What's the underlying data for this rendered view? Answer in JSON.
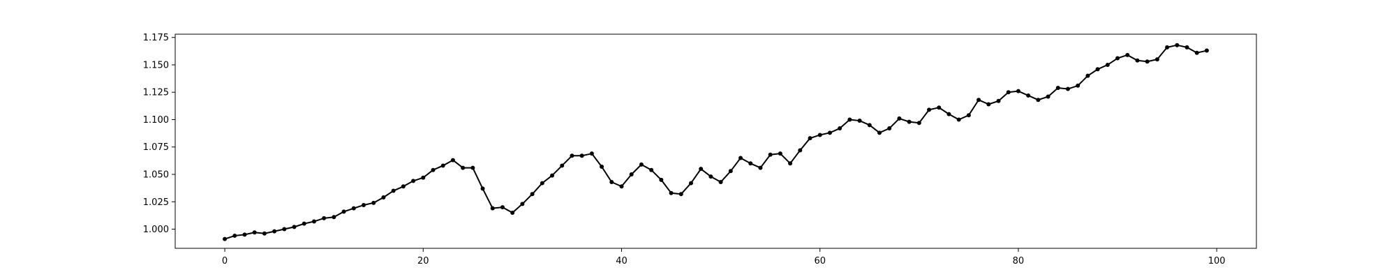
{
  "chart_data": {
    "type": "line",
    "title": "",
    "xlabel": "",
    "ylabel": "",
    "xlim": [
      -5,
      104
    ],
    "ylim": [
      0.9825,
      1.178
    ],
    "x_ticks": [
      0,
      20,
      40,
      60,
      80,
      100
    ],
    "x_tick_labels": [
      "0",
      "20",
      "40",
      "60",
      "80",
      "100"
    ],
    "y_ticks": [
      1.0,
      1.025,
      1.05,
      1.075,
      1.1,
      1.125,
      1.15,
      1.175
    ],
    "y_tick_labels": [
      "1.000",
      "1.025",
      "1.050",
      "1.075",
      "1.100",
      "1.125",
      "1.150",
      "1.175"
    ],
    "grid": false,
    "legend": "none",
    "series": [
      {
        "color": "#000000",
        "marker": "circle",
        "x_start": 0,
        "x_step": 1,
        "values": [
          0.991,
          0.994,
          0.995,
          0.997,
          0.996,
          0.998,
          1.0,
          1.002,
          1.005,
          1.007,
          1.01,
          1.011,
          1.016,
          1.019,
          1.022,
          1.024,
          1.029,
          1.035,
          1.039,
          1.044,
          1.047,
          1.054,
          1.058,
          1.063,
          1.056,
          1.056,
          1.037,
          1.019,
          1.02,
          1.015,
          1.023,
          1.032,
          1.042,
          1.049,
          1.058,
          1.067,
          1.067,
          1.069,
          1.057,
          1.043,
          1.039,
          1.05,
          1.059,
          1.054,
          1.045,
          1.033,
          1.032,
          1.042,
          1.055,
          1.048,
          1.043,
          1.053,
          1.065,
          1.06,
          1.056,
          1.068,
          1.069,
          1.06,
          1.072,
          1.083,
          1.086,
          1.088,
          1.092,
          1.1,
          1.099,
          1.095,
          1.088,
          1.092,
          1.101,
          1.098,
          1.097,
          1.109,
          1.111,
          1.105,
          1.1,
          1.104,
          1.118,
          1.114,
          1.117,
          1.125,
          1.126,
          1.122,
          1.118,
          1.121,
          1.129,
          1.128,
          1.131,
          1.14,
          1.146,
          1.15,
          1.156,
          1.159,
          1.154,
          1.153,
          1.155,
          1.166,
          1.168,
          1.166,
          1.161,
          1.163
        ]
      }
    ]
  }
}
